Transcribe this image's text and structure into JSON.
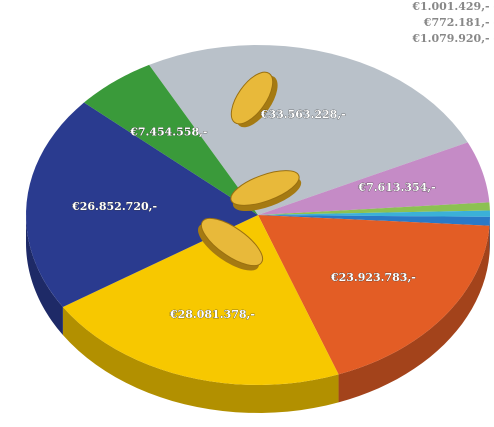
{
  "chart_data": {
    "type": "pie",
    "values": [
      33563228,
      7613354,
      1001429,
      772181,
      1079920,
      23923783,
      28081378,
      26852720,
      7454558
    ],
    "value_labels": [
      "€33.563.228,-",
      "€7.613.354,-",
      "€1.001.429,- -",
      "€772.181,- -",
      "€1.079.920,- -",
      "€23.923.783,-",
      "€28.081.378,-",
      "€26.852.720,-",
      "€7.454.558,-"
    ],
    "colors": [
      "#b9c1c9",
      "#c58bc6",
      "#8cc152",
      "#3bb0d8",
      "#2a79c7",
      "#e35d25",
      "#f7c800",
      "#2a3b8f",
      "#3a9a3a"
    ]
  }
}
